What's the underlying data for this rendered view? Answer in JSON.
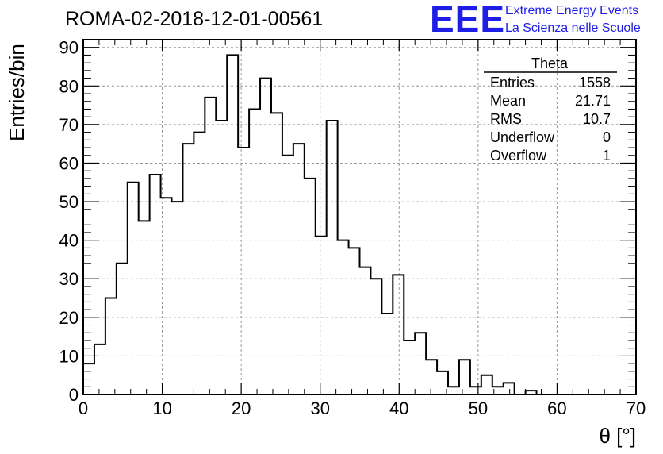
{
  "chart_data": {
    "type": "histogram",
    "title": "ROMA-02-2018-12-01-00561",
    "xlabel": "θ [°]",
    "ylabel": "Entries/bin",
    "xlim": [
      0,
      70
    ],
    "ylim": [
      0,
      92
    ],
    "x_ticks": [
      0,
      10,
      20,
      30,
      40,
      50,
      60,
      70
    ],
    "y_ticks": [
      0,
      10,
      20,
      30,
      40,
      50,
      60,
      70,
      80,
      90
    ],
    "grid": true,
    "bin_width": 1.4,
    "bin_start": 0,
    "values": [
      8,
      13,
      25,
      34,
      55,
      45,
      57,
      51,
      50,
      65,
      68,
      77,
      71,
      88,
      64,
      74,
      82,
      73,
      62,
      65,
      56,
      41,
      71,
      40,
      38,
      33,
      30,
      21,
      31,
      14,
      16,
      9,
      6,
      2,
      9,
      2,
      5,
      2,
      3,
      0,
      1,
      0,
      0,
      0,
      0,
      0,
      0,
      0,
      0,
      0
    ],
    "stats_box": {
      "name": "Theta",
      "rows": [
        {
          "label": "Entries",
          "value": "1558"
        },
        {
          "label": "Mean",
          "value": "21.71"
        },
        {
          "label": "RMS",
          "value": "10.7"
        },
        {
          "label": "Underflow",
          "value": "0"
        },
        {
          "label": "Overflow",
          "value": "1"
        }
      ]
    }
  },
  "logo": {
    "text": "EEE",
    "line1": "Extreme Energy Events",
    "line2": "La Scienza nelle Scuole",
    "color": "#1e1ee6"
  }
}
